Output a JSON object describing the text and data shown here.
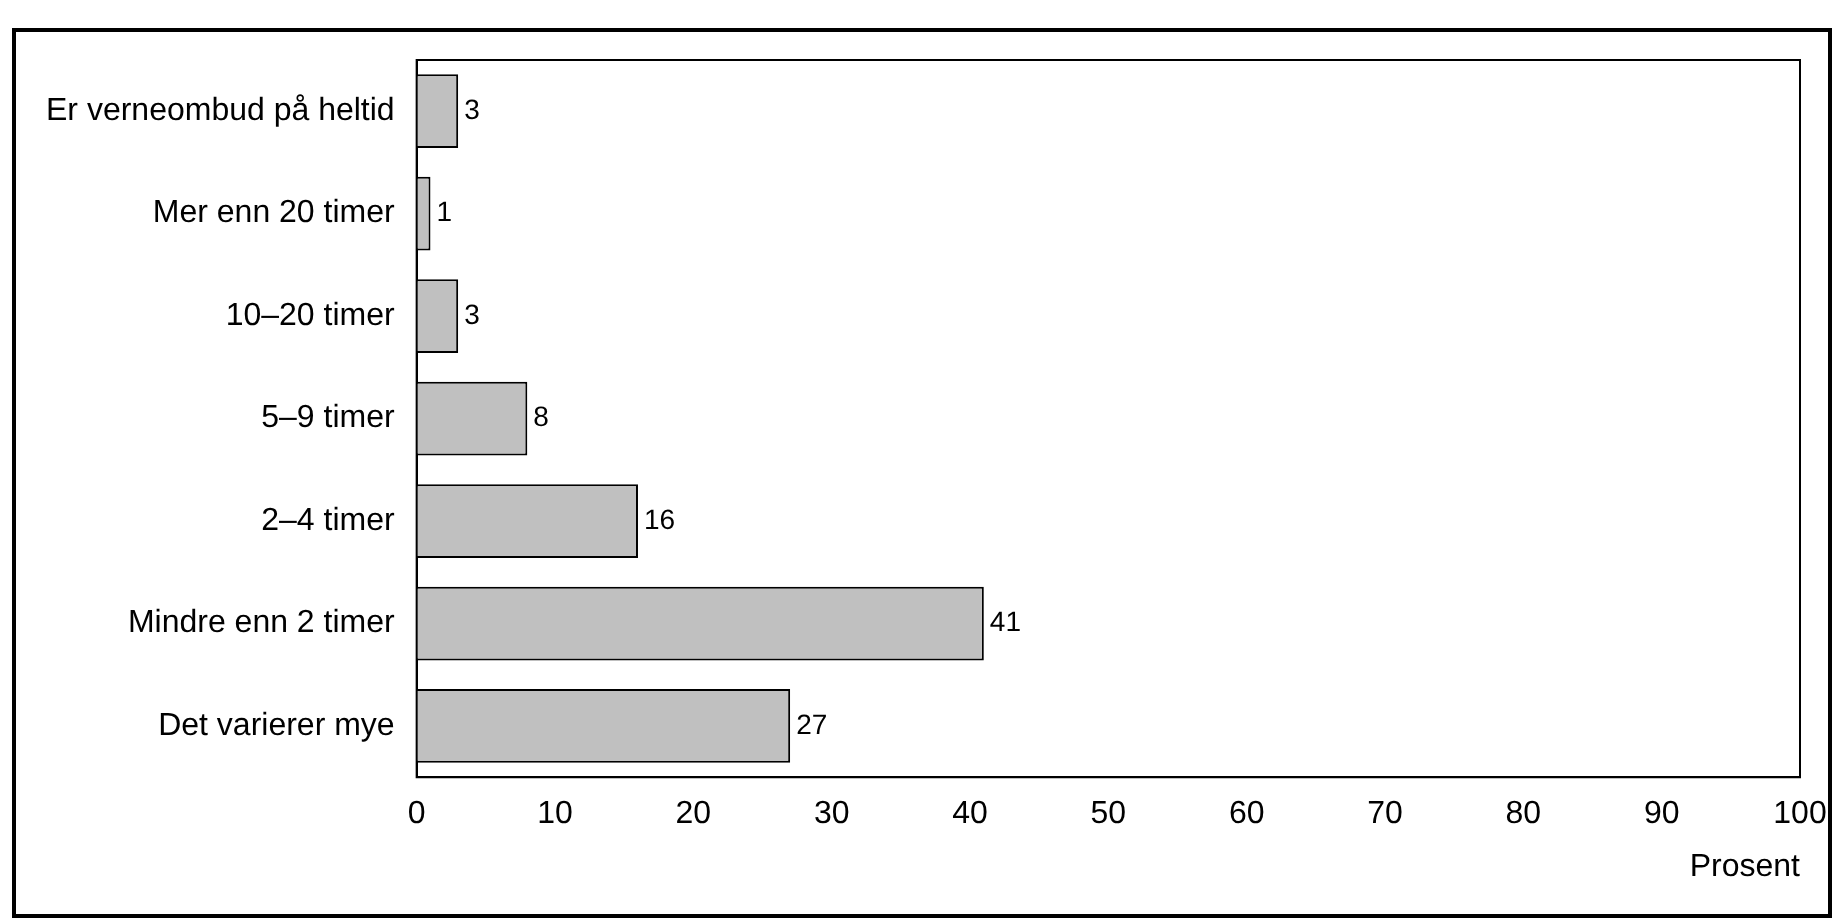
{
  "chart_data": {
    "type": "bar",
    "orientation": "horizontal",
    "categories": [
      "Er verneombud på heltid",
      "Mer enn 20 timer",
      "10–20 timer",
      "5–9 timer",
      "2–4 timer",
      "Mindre enn 2 timer",
      "Det varierer mye"
    ],
    "values": [
      3,
      1,
      3,
      8,
      16,
      41,
      27
    ],
    "color": "#c0c0c0",
    "data_labels": true,
    "xlabel": "Prosent",
    "xlim": [
      0,
      100
    ],
    "xticks": [
      0,
      10,
      20,
      30,
      40,
      50,
      60,
      70,
      80,
      90,
      100
    ],
    "grid": false,
    "legend": false
  }
}
